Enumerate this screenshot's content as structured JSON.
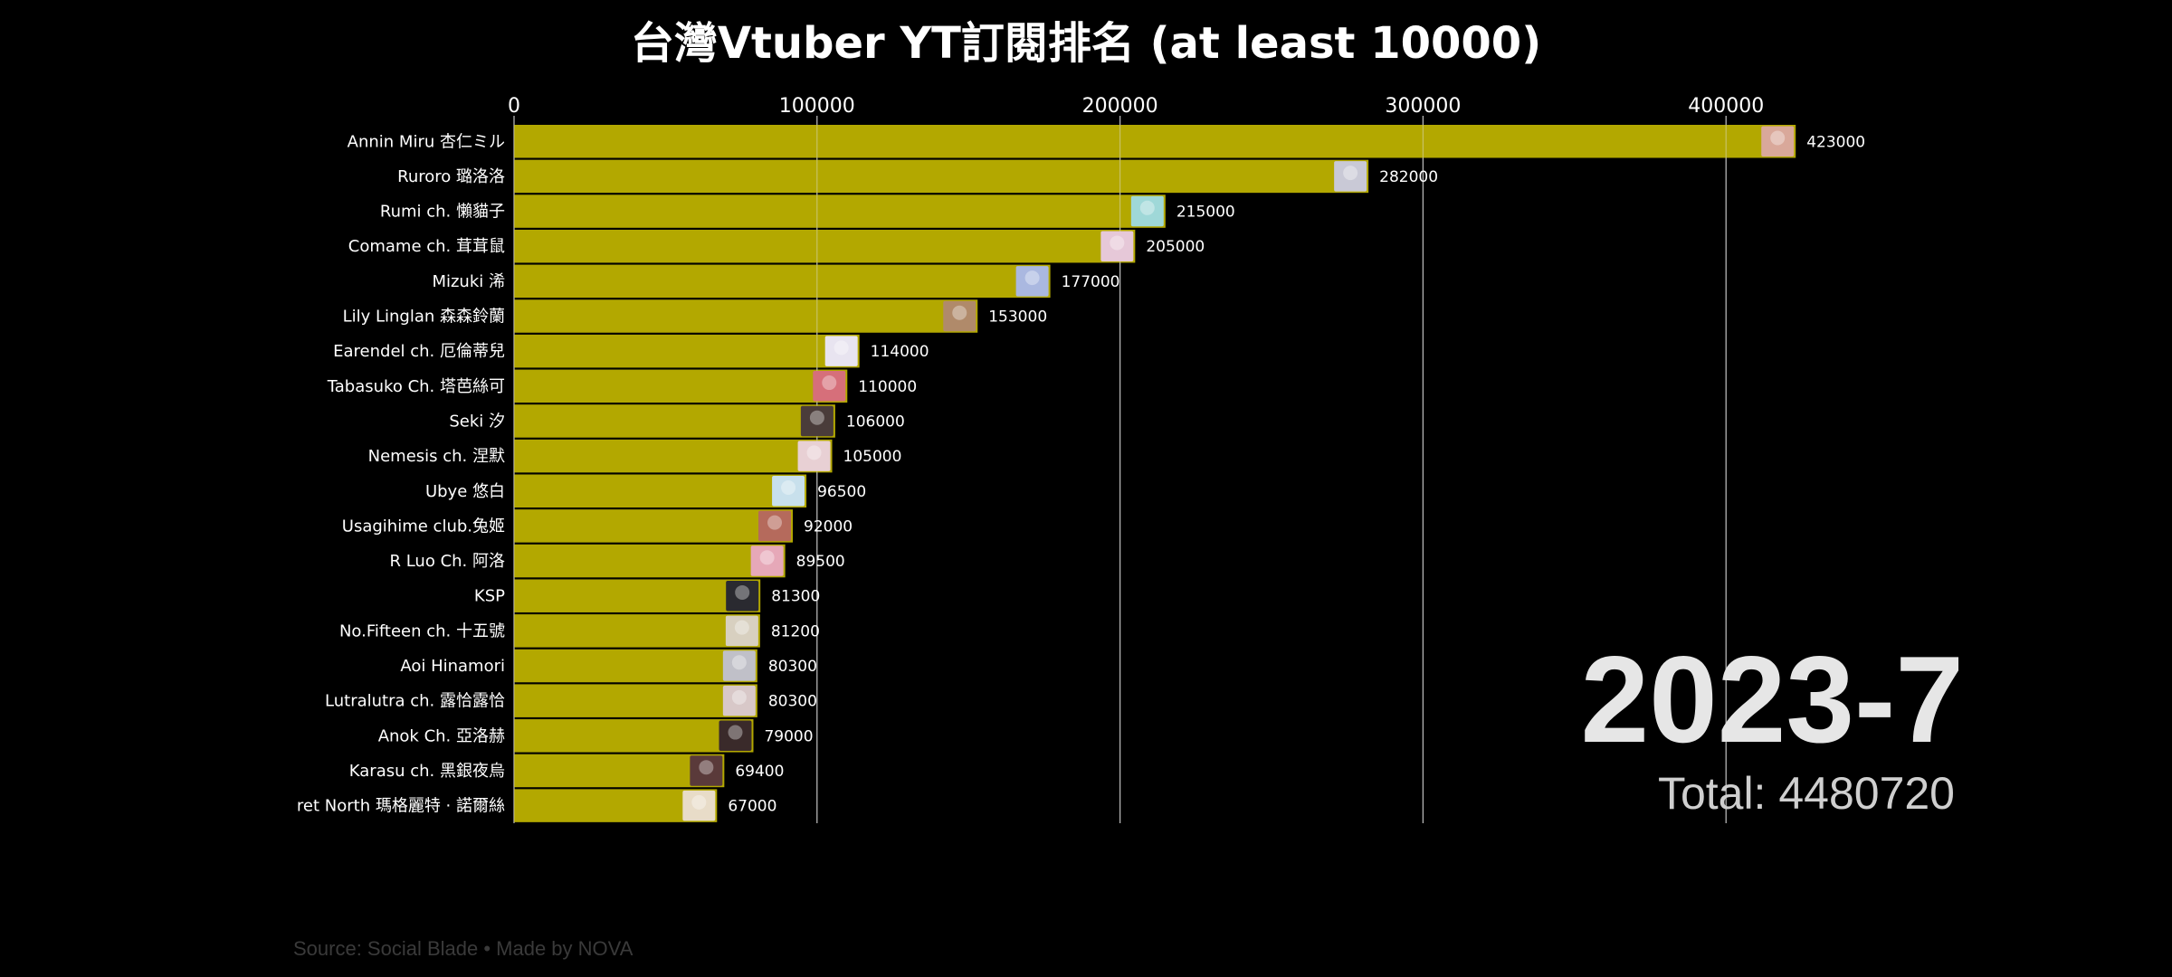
{
  "chart_data": {
    "type": "bar",
    "orientation": "horizontal",
    "title": "台灣Vtuber YT訂閱排名 (at least 10000)",
    "period": "2023-7",
    "total_label": "Total: 4480720",
    "source": "Source: Social Blade • Made by NOVA",
    "xlim": [
      0,
      450000
    ],
    "x_ticks": [
      0,
      100000,
      200000,
      300000,
      400000
    ],
    "x_tick_labels": [
      "0",
      "100000",
      "200000",
      "300000",
      "400000"
    ],
    "tick_position": "top",
    "grid": true,
    "bar_color": "#b3a800",
    "categories": [
      "Annin Miru 杏仁ミル",
      "Ruroro 璐洛洛",
      "Rumi ch. 懶貓子",
      "Comame ch. 茸茸鼠",
      "Mizuki 浠",
      "Lily Linglan 森森鈴蘭",
      "Earendel ch. 厄倫蒂兒",
      "Tabasuko Ch. 塔芭絲可",
      "Seki 汐",
      "Nemesis ch. 涅默",
      "Ubye 悠白",
      "Usagihime club.兔姬",
      "R Luo Ch. 阿洛",
      "KSP",
      "No.Fifteen ch. 十五號",
      "Aoi Hinamori",
      "Lutralutra ch. 露恰露恰",
      "Anok Ch. 亞洛赫",
      "Karasu ch. 黑銀夜烏",
      "ret North 瑪格麗特 · 諾爾絲"
    ],
    "values": [
      423000,
      282000,
      215000,
      205000,
      177000,
      153000,
      114000,
      110000,
      106000,
      105000,
      96500,
      92000,
      89500,
      81300,
      81200,
      80300,
      80300,
      79000,
      69400,
      67000
    ],
    "value_labels": [
      "423000",
      "282000",
      "215000",
      "205000",
      "177000",
      "153000",
      "114000",
      "110000",
      "106000",
      "105000",
      "96500",
      "92000",
      "89500",
      "81300",
      "81200",
      "80300",
      "80300",
      "79000",
      "69400",
      "67000"
    ],
    "avatar_colors": [
      "#d9a89a",
      "#c9c9d6",
      "#9fd8d8",
      "#e6c8d8",
      "#aab8e0",
      "#b08a6a",
      "#e8e4f0",
      "#d66f7a",
      "#4a3c3a",
      "#e8d0d4",
      "#c8e0ec",
      "#b56a5c",
      "#e6a8b8",
      "#2a2a30",
      "#d8d0c0",
      "#c0c0c8",
      "#d8c8c8",
      "#3a2a2a",
      "#5a3a3a",
      "#e8dcc8"
    ]
  }
}
